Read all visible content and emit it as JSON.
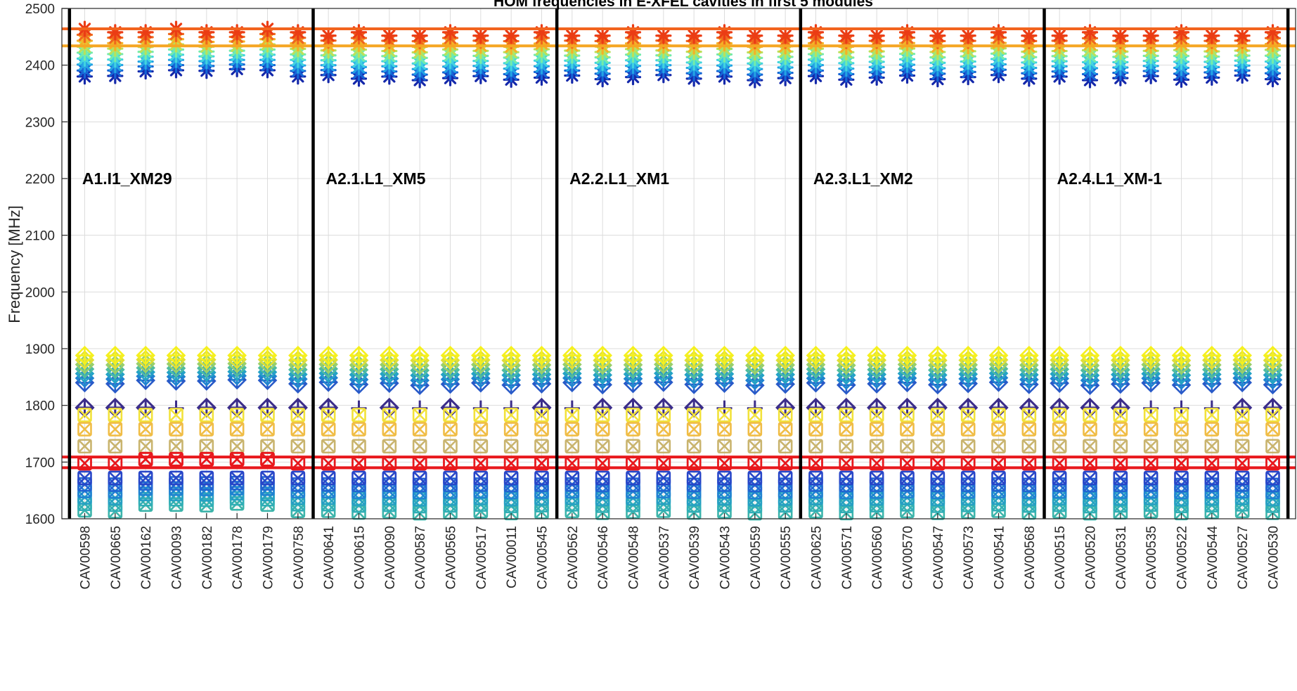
{
  "chart_data": {
    "type": "scatter",
    "title": "HOM frequencies in E-XFEL cavities in first 5 modules",
    "ylabel": "Frequency [MHz]",
    "xlabel": "",
    "ylim": [
      1600,
      2500
    ],
    "yticks": [
      1600,
      1700,
      1800,
      1900,
      2000,
      2100,
      2200,
      2300,
      2400,
      2500
    ],
    "grid": true,
    "categories": [
      "CAV00598",
      "CAV00665",
      "CAV00162",
      "CAV00093",
      "CAV00182",
      "CAV00178",
      "CAV00179",
      "CAV00758",
      "CAV00641",
      "CAV00615",
      "CAV00090",
      "CAV00587",
      "CAV00565",
      "CAV00517",
      "CAV00011",
      "CAV00545",
      "CAV00562",
      "CAV00546",
      "CAV00548",
      "CAV00537",
      "CAV00539",
      "CAV00543",
      "CAV00559",
      "CAV00555",
      "CAV00625",
      "CAV00571",
      "CAV00560",
      "CAV00570",
      "CAV00547",
      "CAV00573",
      "CAV00541",
      "CAV00568",
      "CAV00515",
      "CAV00520",
      "CAV00531",
      "CAV00535",
      "CAV00522",
      "CAV00544",
      "CAV00527",
      "CAV00530"
    ],
    "modules": [
      {
        "label": "A1.I1_XM29",
        "start": 0
      },
      {
        "label": "A2.1.L1_XM5",
        "start": 8
      },
      {
        "label": "A2.2.L1_XM1",
        "start": 16
      },
      {
        "label": "A2.3.L1_XM2",
        "start": 24
      },
      {
        "label": "A2.4.L1_XM-1",
        "start": 32
      }
    ],
    "reference_lines": [
      {
        "y": 2464,
        "color": "#f2641e"
      },
      {
        "y": 2434,
        "color": "#f5a623"
      },
      {
        "y": 1709,
        "color": "#e8181c"
      },
      {
        "y": 1690,
        "color": "#e8181c"
      }
    ],
    "bands": [
      {
        "name": "band-2400",
        "marker": "asterisk",
        "values": [
          2380,
          2381,
          2389,
          2391,
          2390,
          2393,
          2391,
          2380
        ]
      },
      {
        "name": "band-1850",
        "marker": "plus-diamond",
        "values": [
          1840,
          1838,
          1844,
          1843,
          1843,
          1845,
          1844,
          1838
        ]
      },
      {
        "name": "band-1700",
        "marker": "x-square",
        "values": [
          1615,
          1613,
          1625,
          1625,
          1624,
          1627,
          1625,
          1614
        ]
      }
    ],
    "colors": {
      "axes": "#262626",
      "grid": "#dcdcdc",
      "module_separator": "#000000"
    }
  }
}
